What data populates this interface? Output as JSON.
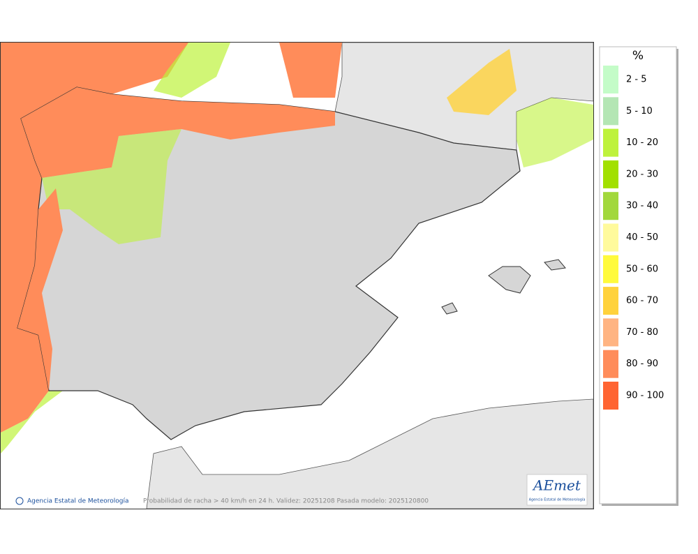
{
  "legend": {
    "title": "%",
    "items": [
      {
        "label": "2 - 5",
        "color": "#c4fcc8"
      },
      {
        "label": "5 - 10",
        "color": "#b4e6b4"
      },
      {
        "label": "10 - 20",
        "color": "#bef23c"
      },
      {
        "label": "20 - 30",
        "color": "#a2e000"
      },
      {
        "label": "30 - 40",
        "color": "#a2d83c"
      },
      {
        "label": "40 - 50",
        "color": "#fffa9c"
      },
      {
        "label": "50 - 60",
        "color": "#fffa3c"
      },
      {
        "label": "60 - 70",
        "color": "#ffd23c"
      },
      {
        "label": "70 - 80",
        "color": "#ffb482"
      },
      {
        "label": "80 - 90",
        "color": "#ff8c5a"
      },
      {
        "label": "90 - 100",
        "color": "#ff6432"
      }
    ]
  },
  "footer": {
    "agency": "Agencia Estatal de Meteorología",
    "caption": "Probabilidad de racha > 40 km/h en 24 h. Validez: 20251208 Pasada modelo: 2025120800"
  },
  "logo": {
    "name": "AEmet",
    "subtitle": "Agencia Estatal de Meteorología"
  }
}
